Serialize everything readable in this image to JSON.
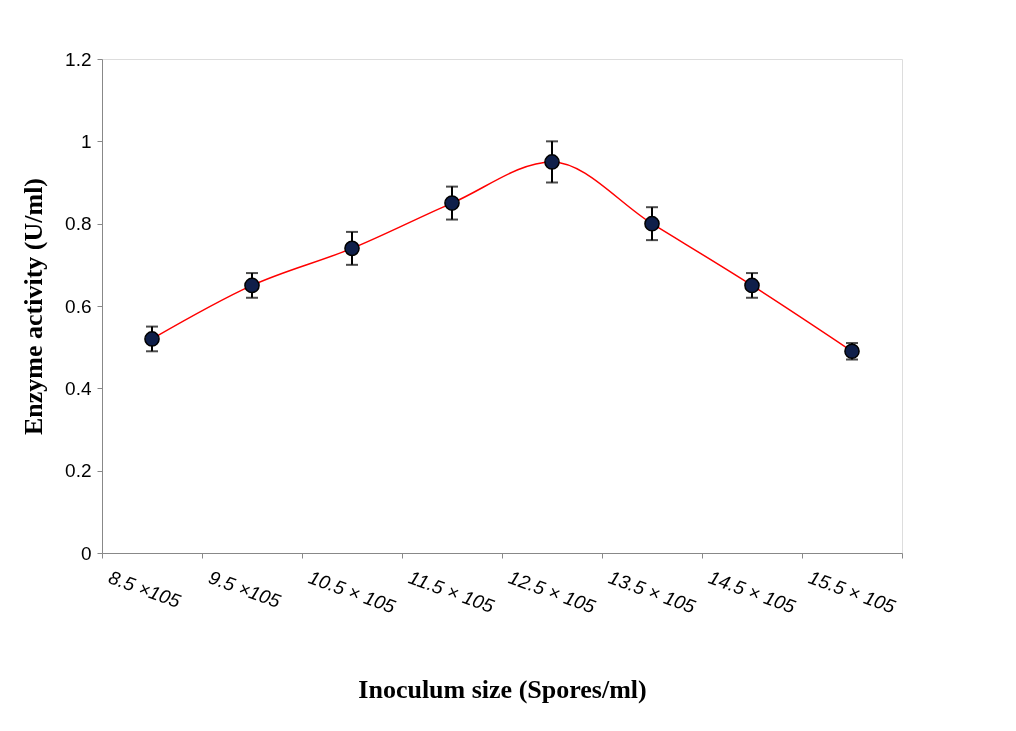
{
  "chart_data": {
    "type": "line",
    "xlabel": "Inoculum size (Spores/ml)",
    "ylabel": "Enzyme activity (U/ml)",
    "categories": [
      "8.5 ×105",
      "9.5 ×105",
      "10.5 × 105",
      "11.5 × 105",
      "12.5 × 105",
      "13.5 × 105",
      "14.5 × 105",
      "15.5 × 105"
    ],
    "series": [
      {
        "color": "#ff0000",
        "values": [
          0.52,
          0.65,
          0.74,
          0.85,
          0.95,
          0.8,
          0.65,
          0.49
        ],
        "errors": [
          0.03,
          0.03,
          0.04,
          0.04,
          0.05,
          0.04,
          0.03,
          0.02
        ]
      }
    ],
    "ylim": [
      0,
      1.2
    ],
    "yticks": [
      0,
      0.2,
      0.4,
      0.6,
      0.8,
      1,
      1.2
    ],
    "grid": false,
    "marker": "circle",
    "line_style": "solid"
  }
}
